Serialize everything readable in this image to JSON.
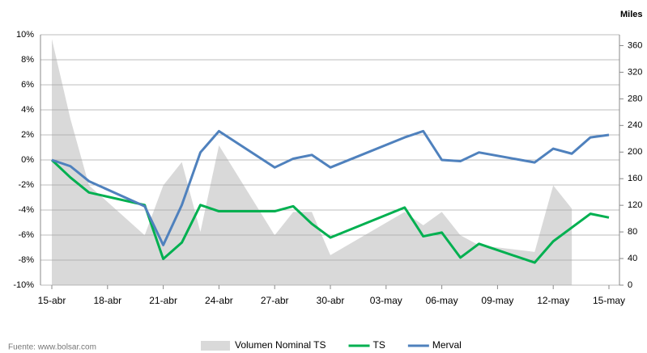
{
  "chart_data": {
    "type": "line",
    "x": [
      "15-abr",
      "16-abr",
      "17-abr",
      "20-abr",
      "21-abr",
      "22-abr",
      "23-abr",
      "24-abr",
      "27-abr",
      "28-abr",
      "29-abr",
      "30-abr",
      "04-may",
      "05-may",
      "06-may",
      "07-may",
      "08-may",
      "11-may",
      "12-may",
      "13-may",
      "14-may",
      "15-may"
    ],
    "xticks": [
      "15-abr",
      "18-abr",
      "21-abr",
      "24-abr",
      "27-abr",
      "30-abr",
      "03-may",
      "06-may",
      "09-may",
      "12-may",
      "15-may"
    ],
    "xlim": [
      "15-abr",
      "15-may"
    ],
    "ylim": [
      -10,
      10
    ],
    "yticks": [
      {
        "value": -10,
        "label": "-10%"
      },
      {
        "value": -8,
        "label": "-8%"
      },
      {
        "value": -6,
        "label": "-6%"
      },
      {
        "value": -4,
        "label": "-4%"
      },
      {
        "value": -2,
        "label": "-2%"
      },
      {
        "value": 0,
        "label": "0%"
      },
      {
        "value": 2,
        "label": "2%"
      },
      {
        "value": 4,
        "label": "4%"
      },
      {
        "value": 6,
        "label": "6%"
      },
      {
        "value": 8,
        "label": "8%"
      },
      {
        "value": 10,
        "label": "10%"
      }
    ],
    "y2lim": [
      0,
      380
    ],
    "y2ticks": [
      0,
      40,
      80,
      120,
      160,
      200,
      240,
      280,
      320,
      360
    ],
    "y2label": "Miles",
    "grid": true,
    "source": "Fuente: www.bolsar.com",
    "series": [
      {
        "name": "Volumen Nominal TS",
        "type": "area",
        "axis": "y2",
        "color": "#d9d9d9",
        "values": [
          370,
          250,
          150,
          75,
          150,
          185,
          80,
          210,
          75,
          110,
          110,
          45,
          110,
          90,
          110,
          75,
          60,
          50,
          150,
          115,
          null,
          null
        ]
      },
      {
        "name": "TS",
        "type": "line",
        "color": "#00b050",
        "values": [
          0,
          -1.4,
          -2.6,
          -3.6,
          -7.9,
          -6.6,
          -3.6,
          -4.1,
          -4.1,
          -3.7,
          -5.1,
          -6.2,
          -3.8,
          -6.1,
          -5.8,
          -7.8,
          -6.7,
          -8.2,
          -6.5,
          -5.4,
          -4.3,
          -4.6
        ]
      },
      {
        "name": "Merval",
        "type": "line",
        "color": "#4f81bd",
        "values": [
          0,
          -0.5,
          -1.7,
          -3.7,
          -6.8,
          -3.6,
          0.6,
          2.3,
          -0.6,
          0.1,
          0.4,
          -0.6,
          1.8,
          2.3,
          0,
          -0.1,
          0.6,
          -0.2,
          0.9,
          0.5,
          1.8,
          2.0
        ]
      }
    ]
  }
}
